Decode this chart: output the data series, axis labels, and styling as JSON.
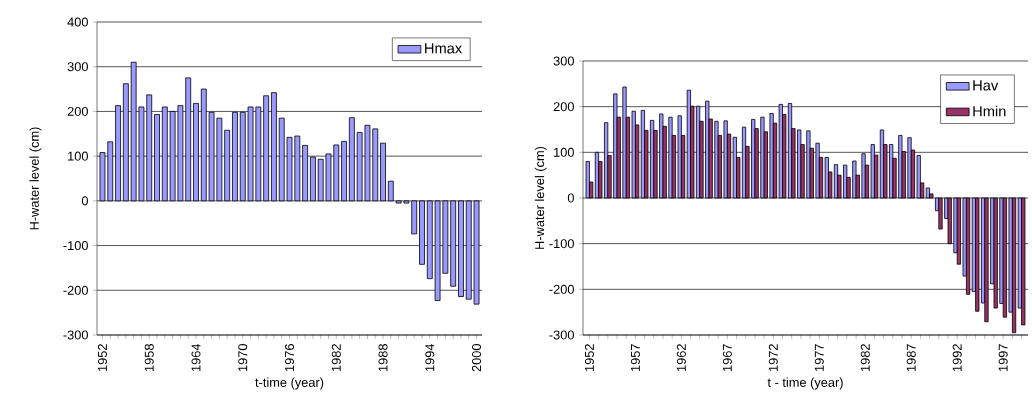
{
  "chart_data": [
    {
      "type": "bar",
      "xlabel": "t-time (year)",
      "ylabel": "H-water level (cm)",
      "categories": [
        "1952",
        null,
        null,
        null,
        null,
        null,
        "1958",
        null,
        null,
        null,
        null,
        null,
        "1964",
        null,
        null,
        null,
        null,
        null,
        "1970",
        null,
        null,
        null,
        null,
        null,
        "1976",
        null,
        null,
        null,
        null,
        null,
        "1982",
        null,
        null,
        null,
        null,
        null,
        "1988",
        null,
        null,
        null,
        null,
        null,
        "1994",
        null,
        null,
        null,
        null,
        null,
        "2000"
      ],
      "series": [
        {
          "name": "Hmax",
          "color": "#9999ff",
          "values": [
            108,
            132,
            213,
            262,
            310,
            210,
            237,
            193,
            210,
            200,
            213,
            275,
            218,
            250,
            198,
            185,
            158,
            198,
            198,
            210,
            210,
            235,
            242,
            185,
            142,
            145,
            124,
            98,
            93,
            105,
            125,
            133,
            186,
            153,
            169,
            161,
            129,
            44,
            -5,
            -5,
            -74,
            -142,
            -174,
            -223,
            -162,
            -191,
            -214,
            -220,
            -231
          ]
        }
      ],
      "ylim": [
        -300,
        400
      ],
      "yticks": [
        -300,
        -200,
        -100,
        0,
        100,
        200,
        300,
        400
      ],
      "grid": "y",
      "legend": "top right"
    },
    {
      "type": "bar",
      "xlabel": "t - time (year)",
      "ylabel": "H-water level (cm)",
      "categories": [
        "1952",
        null,
        null,
        null,
        null,
        "1957",
        null,
        null,
        null,
        null,
        "1962",
        null,
        null,
        null,
        null,
        "1967",
        null,
        null,
        null,
        null,
        "1972",
        null,
        null,
        null,
        null,
        "1977",
        null,
        null,
        null,
        null,
        "1982",
        null,
        null,
        null,
        null,
        "1987",
        null,
        null,
        null,
        null,
        "1992",
        null,
        null,
        null,
        null,
        "1997",
        null,
        null
      ],
      "series": [
        {
          "name": "Hav",
          "color": "#9999ff",
          "values": [
            80,
            100,
            165,
            228,
            243,
            190,
            192,
            170,
            184,
            177,
            180,
            236,
            201,
            212,
            168,
            169,
            133,
            155,
            172,
            177,
            185,
            205,
            207,
            149,
            147,
            120,
            89,
            73,
            72,
            81,
            97,
            117,
            149,
            117,
            137,
            132,
            93,
            22,
            -28,
            -45,
            -120,
            -171,
            -205,
            -230,
            -188,
            -231,
            -250,
            -241
          ]
        },
        {
          "name": "Hmin",
          "color": "#993366",
          "values": [
            35,
            80,
            93,
            177,
            177,
            160,
            148,
            148,
            157,
            137,
            137,
            201,
            168,
            173,
            137,
            140,
            89,
            113,
            152,
            145,
            164,
            183,
            152,
            117,
            109,
            89,
            57,
            50,
            45,
            50,
            72,
            94,
            117,
            87,
            102,
            105,
            33,
            9,
            -68,
            -100,
            -145,
            -211,
            -248,
            -271,
            -241,
            -261,
            -295,
            -278
          ]
        }
      ],
      "ylim": [
        -300,
        300
      ],
      "yticks": [
        -300,
        -200,
        -100,
        0,
        100,
        200,
        300
      ],
      "grid": "y",
      "legend": "top right"
    }
  ]
}
